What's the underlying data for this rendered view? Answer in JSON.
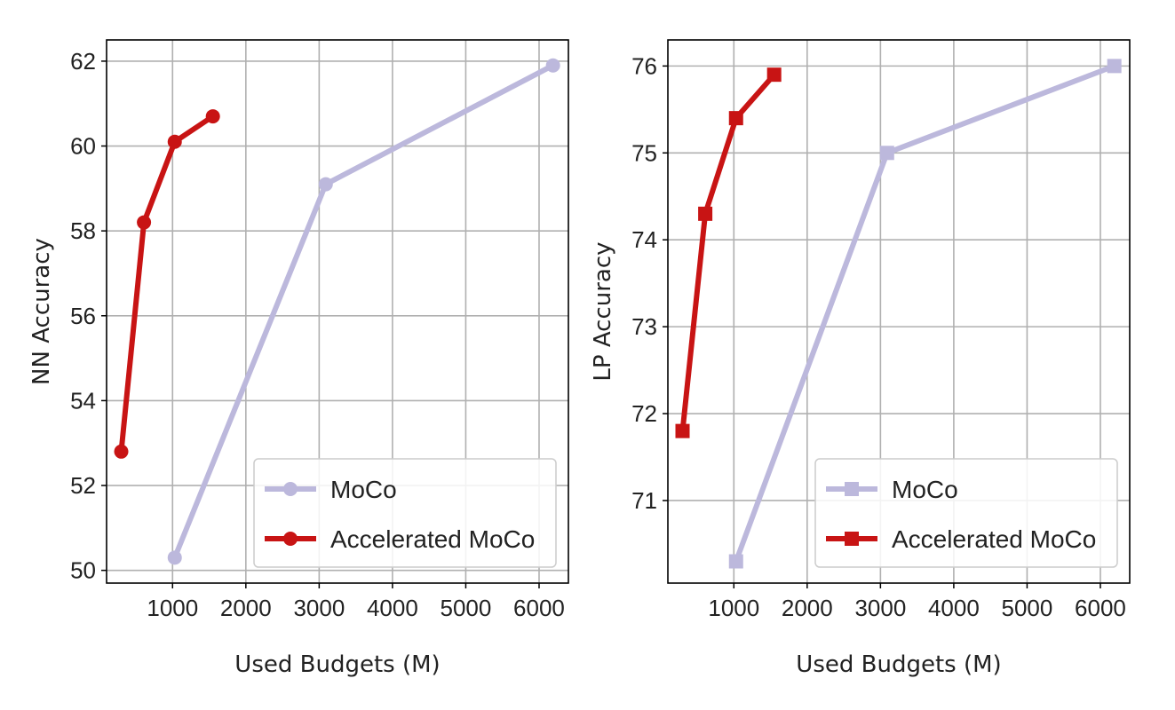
{
  "chart_data": [
    {
      "type": "line",
      "xlabel": "Used Budgets (M)",
      "ylabel": "NN Accuracy",
      "xlim": [
        100,
        6400
      ],
      "ylim": [
        49.7,
        62.5
      ],
      "xticks": [
        1000,
        2000,
        3000,
        4000,
        5000,
        6000
      ],
      "yticks": [
        50,
        52,
        54,
        56,
        58,
        60,
        62
      ],
      "grid": true,
      "legend_position": "lower-right",
      "marker": "circle",
      "series": [
        {
          "name": "MoCo",
          "color": "#bcb8dc",
          "x": [
            1030,
            3090,
            6190
          ],
          "y": [
            50.3,
            59.1,
            61.9
          ]
        },
        {
          "name": "Accelerated MoCo",
          "color": "#c81414",
          "x": [
            300,
            610,
            1030,
            1550
          ],
          "y": [
            52.8,
            58.2,
            60.1,
            60.7
          ]
        }
      ]
    },
    {
      "type": "line",
      "xlabel": "Used Budgets (M)",
      "ylabel": "LP Accuracy",
      "xlim": [
        100,
        6400
      ],
      "ylim": [
        70.05,
        76.3
      ],
      "xticks": [
        1000,
        2000,
        3000,
        4000,
        5000,
        6000
      ],
      "yticks": [
        71,
        72,
        73,
        74,
        75,
        76
      ],
      "grid": true,
      "legend_position": "lower-right",
      "marker": "square",
      "series": [
        {
          "name": "MoCo",
          "color": "#bcb8dc",
          "x": [
            1030,
            3090,
            6190
          ],
          "y": [
            70.3,
            75.0,
            76.0
          ]
        },
        {
          "name": "Accelerated MoCo",
          "color": "#c81414",
          "x": [
            300,
            610,
            1030,
            1550
          ],
          "y": [
            71.8,
            74.3,
            75.4,
            75.9
          ]
        }
      ]
    }
  ]
}
